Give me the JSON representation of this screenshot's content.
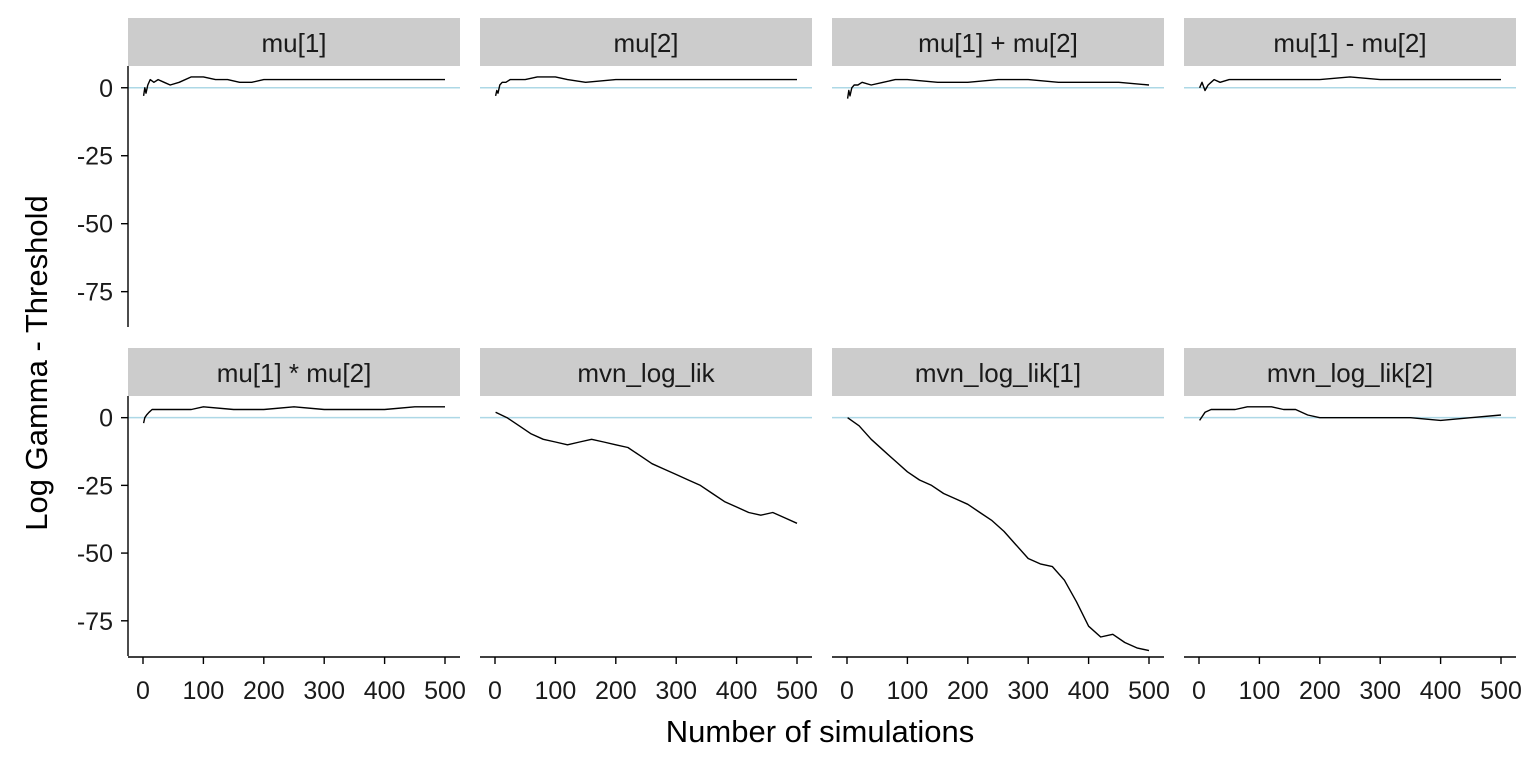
{
  "chart_data": {
    "type": "line",
    "layout": "facet-grid-2x4",
    "xlabel": "Number of simulations",
    "ylabel": "Log Gamma - Threshold",
    "xlim": [
      0,
      500
    ],
    "ylim": [
      -88,
      8
    ],
    "xticks": [
      0,
      100,
      200,
      300,
      400,
      500
    ],
    "yticks": [
      0,
      -25,
      -50,
      -75
    ],
    "reference_line": {
      "y": 0,
      "color": "#add8e6"
    },
    "line_color": "#000000",
    "strip_color": "#cccccc",
    "panels": [
      {
        "title": "mu[1]",
        "x": [
          1,
          3,
          5,
          8,
          12,
          18,
          25,
          35,
          45,
          60,
          80,
          100,
          120,
          140,
          160,
          180,
          200,
          250,
          300,
          350,
          400,
          450,
          500
        ],
        "values": [
          -3,
          0,
          -2,
          1,
          3,
          2,
          3,
          2,
          1,
          2,
          4,
          4,
          3,
          3,
          2,
          2,
          3,
          3,
          3,
          3,
          3,
          3,
          3
        ]
      },
      {
        "title": "mu[2]",
        "x": [
          1,
          3,
          5,
          8,
          12,
          18,
          25,
          35,
          50,
          70,
          100,
          120,
          150,
          200,
          250,
          300,
          350,
          400,
          450,
          500
        ],
        "values": [
          -3,
          -1,
          -2,
          1,
          2,
          2,
          3,
          3,
          3,
          4,
          4,
          3,
          2,
          3,
          3,
          3,
          3,
          3,
          3,
          3
        ]
      },
      {
        "title": "mu[1] + mu[2]",
        "x": [
          1,
          3,
          5,
          8,
          12,
          18,
          25,
          40,
          60,
          80,
          100,
          150,
          200,
          250,
          300,
          350,
          400,
          450,
          500
        ],
        "values": [
          -4,
          -1,
          -3,
          0,
          1,
          1,
          2,
          1,
          2,
          3,
          3,
          2,
          2,
          3,
          3,
          2,
          2,
          2,
          1
        ]
      },
      {
        "title": "mu[1] - mu[2]",
        "x": [
          1,
          5,
          10,
          15,
          20,
          25,
          35,
          50,
          70,
          100,
          150,
          200,
          250,
          300,
          350,
          400,
          450,
          500
        ],
        "values": [
          0,
          2,
          -1,
          1,
          2,
          3,
          2,
          3,
          3,
          3,
          3,
          3,
          4,
          3,
          3,
          3,
          3,
          3
        ]
      },
      {
        "title": "mu[1] * mu[2]",
        "x": [
          1,
          3,
          6,
          10,
          15,
          25,
          40,
          60,
          80,
          100,
          150,
          200,
          250,
          300,
          350,
          400,
          450,
          500
        ],
        "values": [
          -2,
          0,
          1,
          2,
          3,
          3,
          3,
          3,
          3,
          4,
          3,
          3,
          4,
          3,
          3,
          3,
          4,
          4
        ]
      },
      {
        "title": "mvn_log_lik",
        "x": [
          1,
          20,
          40,
          60,
          80,
          100,
          120,
          140,
          160,
          180,
          200,
          220,
          240,
          260,
          280,
          300,
          320,
          340,
          360,
          380,
          400,
          420,
          440,
          460,
          480,
          500
        ],
        "values": [
          2,
          0,
          -3,
          -6,
          -8,
          -9,
          -10,
          -9,
          -8,
          -9,
          -10,
          -11,
          -14,
          -17,
          -19,
          -21,
          -23,
          -25,
          -28,
          -31,
          -33,
          -35,
          -36,
          -35,
          -37,
          -39
        ]
      },
      {
        "title": "mvn_log_lik[1]",
        "x": [
          1,
          20,
          40,
          60,
          80,
          100,
          120,
          140,
          160,
          180,
          200,
          220,
          240,
          260,
          280,
          300,
          320,
          340,
          360,
          380,
          400,
          420,
          440,
          460,
          480,
          500
        ],
        "values": [
          0,
          -3,
          -8,
          -12,
          -16,
          -20,
          -23,
          -25,
          -28,
          -30,
          -32,
          -35,
          -38,
          -42,
          -47,
          -52,
          -54,
          -55,
          -60,
          -68,
          -77,
          -81,
          -80,
          -83,
          -85,
          -86
        ]
      },
      {
        "title": "mvn_log_lik[2]",
        "x": [
          1,
          10,
          20,
          40,
          60,
          80,
          100,
          120,
          140,
          160,
          180,
          200,
          250,
          300,
          350,
          400,
          450,
          500
        ],
        "values": [
          -1,
          2,
          3,
          3,
          3,
          4,
          4,
          4,
          3,
          3,
          1,
          0,
          0,
          0,
          0,
          -1,
          0,
          1
        ]
      }
    ]
  }
}
